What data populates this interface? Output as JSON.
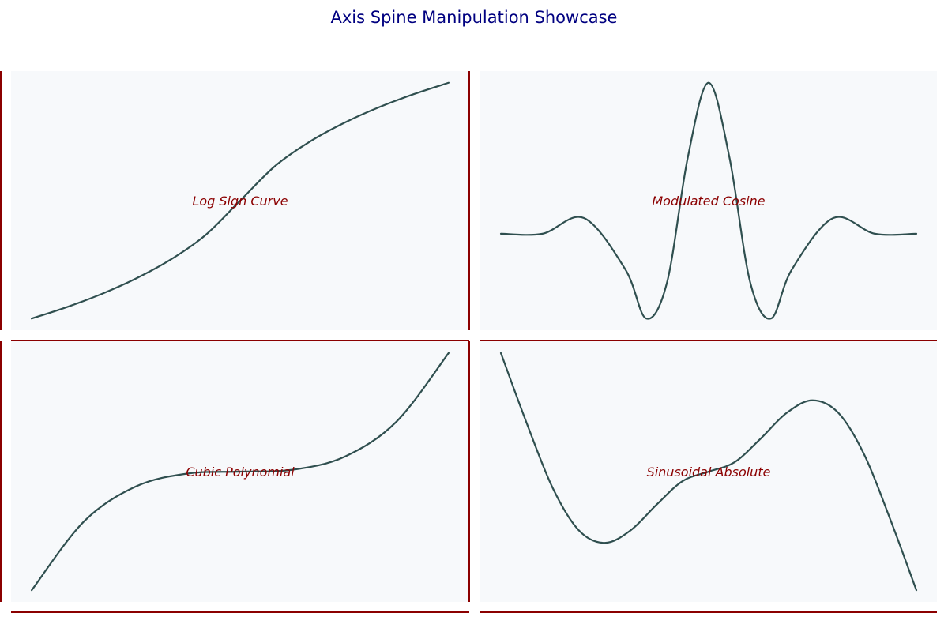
{
  "figure": {
    "title": "Axis Spine Manipulation Showcase",
    "title_color": "#000080"
  },
  "style": {
    "panel_background": "#f7f9fb",
    "spine_color": "#8b0000",
    "line_color": "#2f4f4f",
    "label_color": "#8b0000"
  },
  "chart_data": [
    {
      "type": "line",
      "annotation": "Log Sign Curve",
      "function": "sign(x) * log(1 + |x|)",
      "x": [
        -3.0,
        -2.5,
        -2.0,
        -1.5,
        -1.0,
        -0.5,
        0.0,
        0.5,
        1.0,
        1.5,
        2.0,
        2.5,
        3.0
      ],
      "y": [
        -1.386,
        -1.253,
        -1.099,
        -0.916,
        -0.693,
        -0.405,
        0.0,
        0.405,
        0.693,
        0.916,
        1.099,
        1.253,
        1.386
      ],
      "spines": [
        "left",
        "right",
        "bottom"
      ]
    },
    {
      "type": "line",
      "annotation": "Modulated Cosine",
      "function": "cos(2x) * exp(-x^2 / 4)",
      "x": [
        -5.0,
        -4.0,
        -3.0,
        -2.0,
        -1.5,
        -1.0,
        -0.5,
        0.0,
        0.5,
        1.0,
        1.5,
        2.0,
        3.0,
        4.0,
        5.0
      ],
      "y": [
        -0.002,
        -0.002,
        0.102,
        -0.241,
        -0.565,
        -0.324,
        0.506,
        1.0,
        0.506,
        -0.324,
        -0.565,
        -0.241,
        0.102,
        -0.002,
        -0.002
      ],
      "spines": [
        "bottom"
      ]
    },
    {
      "type": "line",
      "annotation": "Cubic Polynomial",
      "function": "x^3",
      "x": [
        -2.0,
        -1.5,
        -1.0,
        -0.5,
        0.0,
        0.5,
        1.0,
        1.5,
        2.0
      ],
      "y": [
        -8.0,
        -3.375,
        -1.0,
        -0.125,
        0.0,
        0.125,
        1.0,
        3.375,
        8.0
      ],
      "spines": [
        "left",
        "right",
        "bottom"
      ]
    },
    {
      "type": "line",
      "annotation": "Sinusoidal Absolute",
      "function": "sin(x) * |x|",
      "x": [
        -4.0,
        -3.5,
        -3.0,
        -2.5,
        -2.0,
        -1.5,
        -1.0,
        -0.5,
        0.0,
        0.5,
        1.0,
        1.5,
        2.0,
        2.5,
        3.0,
        3.5,
        4.0
      ],
      "y": [
        3.027,
        1.228,
        -0.423,
        -1.496,
        -1.819,
        -1.496,
        -0.841,
        -0.24,
        0.0,
        0.24,
        0.841,
        1.496,
        1.819,
        1.496,
        0.423,
        -1.228,
        -3.027
      ],
      "spines": [
        "bottom"
      ]
    }
  ]
}
